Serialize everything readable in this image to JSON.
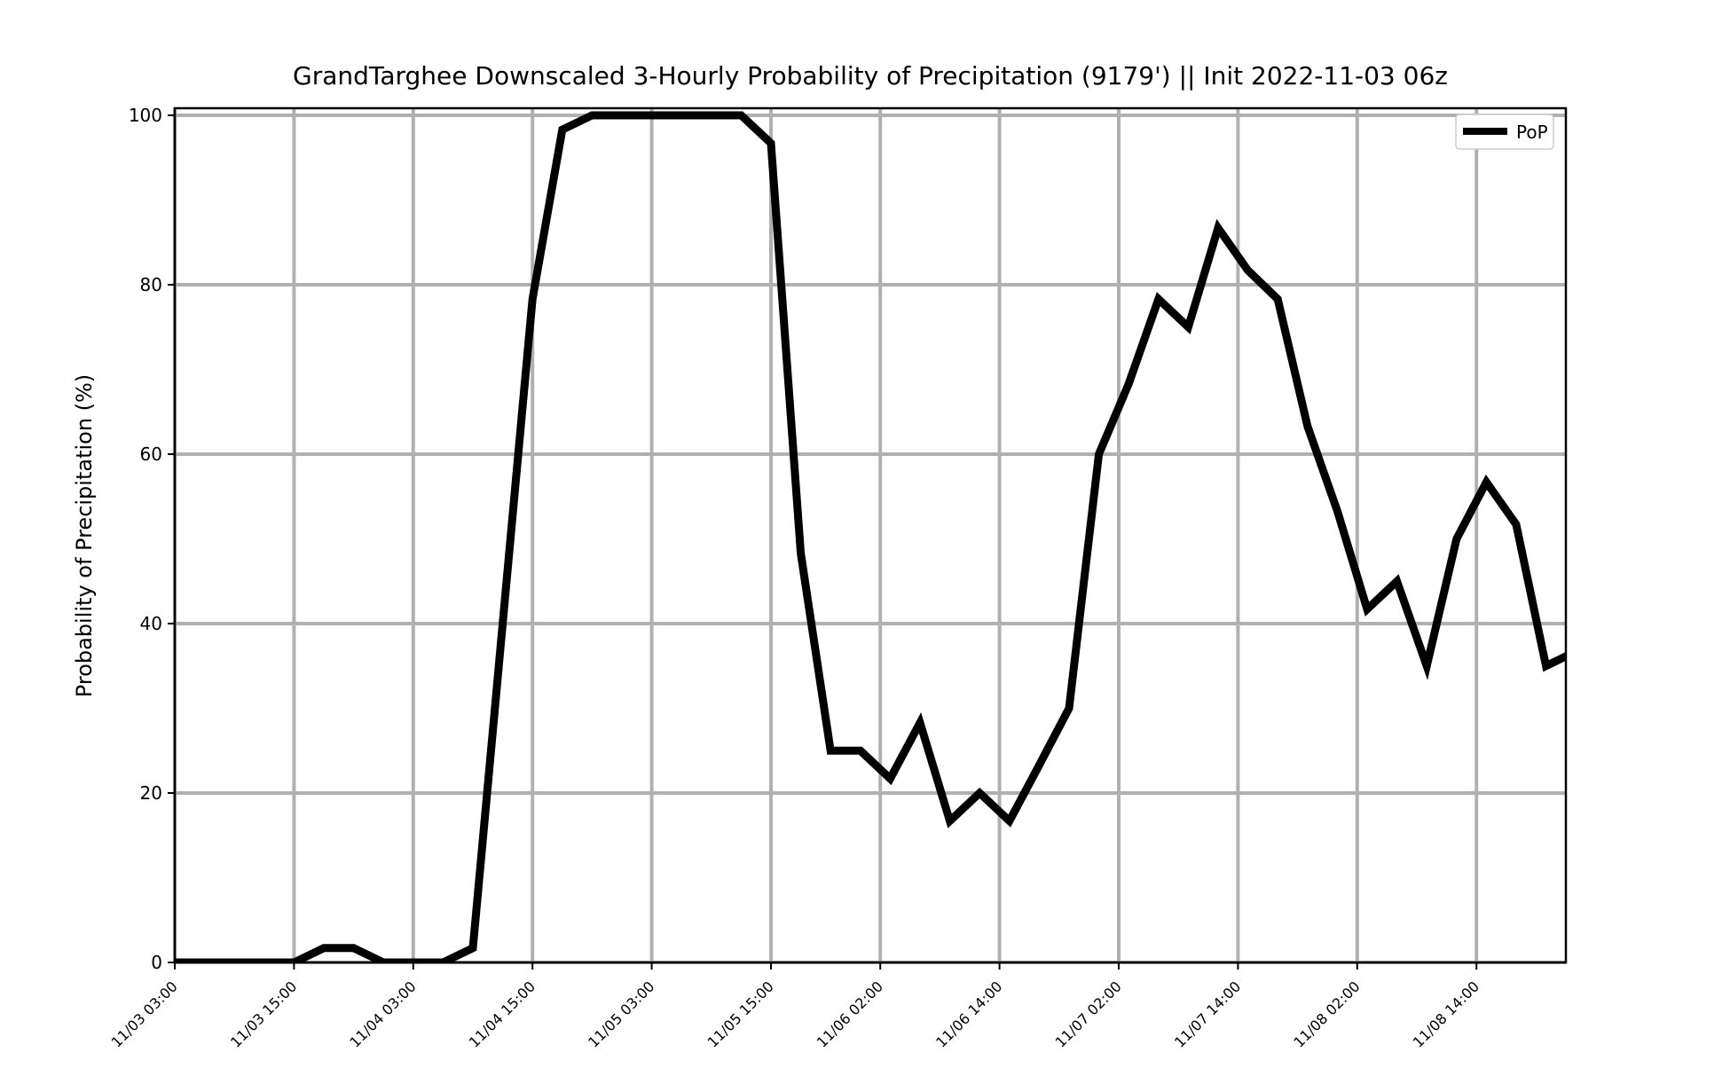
{
  "chart_data": {
    "type": "line",
    "title": "GrandTarghee Downscaled 3-Hourly Probability of Precipitation (9179') || Init 2022-11-03 06z",
    "xlabel": "",
    "ylabel": "Probability of Precipitation (%)",
    "ylim": [
      0,
      100
    ],
    "yticks": [
      0,
      20,
      40,
      60,
      80,
      100
    ],
    "xlim": [
      "11/03 03:00",
      "11/08 23:00"
    ],
    "xtick_labels": [
      "11/03 03:00",
      "11/03 15:00",
      "11/04 03:00",
      "11/04 15:00",
      "11/05 03:00",
      "11/05 15:00",
      "11/06 02:00",
      "11/06 14:00",
      "11/07 02:00",
      "11/07 14:00",
      "11/08 02:00",
      "11/08 14:00"
    ],
    "grid": true,
    "legend_position": "upper right",
    "series": [
      {
        "name": "PoP",
        "color": "#000000",
        "x": [
          "11/03 03:00",
          "11/03 06:00",
          "11/03 09:00",
          "11/03 12:00",
          "11/03 15:00",
          "11/03 18:00",
          "11/03 21:00",
          "11/04 00:00",
          "11/04 03:00",
          "11/04 06:00",
          "11/04 09:00",
          "11/04 12:00",
          "11/04 15:00",
          "11/04 18:00",
          "11/04 21:00",
          "11/05 00:00",
          "11/05 03:00",
          "11/05 06:00",
          "11/05 09:00",
          "11/05 12:00",
          "11/05 15:00",
          "11/05 18:00",
          "11/05 21:00",
          "11/06 00:00",
          "11/06 03:00",
          "11/06 06:00",
          "11/06 09:00",
          "11/06 12:00",
          "11/06 15:00",
          "11/06 18:00",
          "11/06 21:00",
          "11/07 00:00",
          "11/07 03:00",
          "11/07 06:00",
          "11/07 09:00",
          "11/07 12:00",
          "11/07 15:00",
          "11/07 18:00",
          "11/07 21:00",
          "11/08 00:00",
          "11/08 03:00",
          "11/08 06:00",
          "11/08 09:00",
          "11/08 12:00",
          "11/08 15:00",
          "11/08 18:00",
          "11/08 21:00",
          "11/09 00:00"
        ],
        "values": [
          0,
          0,
          0,
          0,
          0,
          1.7,
          1.7,
          0,
          0,
          0,
          1.7,
          40,
          78.3,
          98.3,
          100,
          100,
          100,
          100,
          100,
          100,
          96.7,
          48.3,
          25,
          25,
          21.7,
          28.3,
          16.7,
          20,
          16.7,
          23.3,
          30,
          60,
          68.3,
          78.3,
          75,
          86.7,
          81.7,
          78.3,
          63.3,
          53.3,
          41.7,
          45,
          35,
          50,
          56.7,
          51.7,
          35,
          36.7
        ]
      }
    ]
  }
}
